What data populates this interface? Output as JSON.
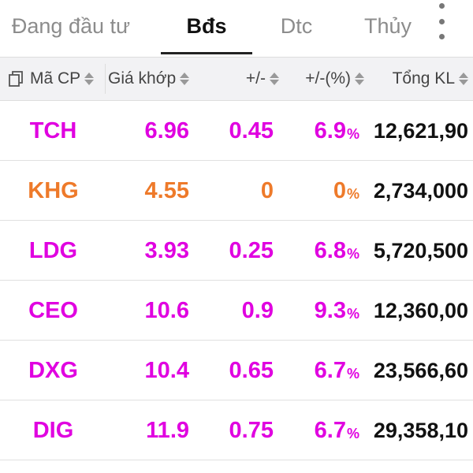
{
  "tabs": [
    {
      "label": "Đang đầu tư",
      "active": false
    },
    {
      "label": "Bđs",
      "active": true
    },
    {
      "label": "Dtc",
      "active": false
    },
    {
      "label": "Thủy",
      "active": false
    }
  ],
  "header": {
    "symbol": "Mã CP",
    "price": "Giá khớp",
    "change": "+/-",
    "change_pct": "+/-(%)",
    "volume": "Tổng KL"
  },
  "colors": {
    "up": "#e000e0",
    "ref": "#ee7a2a"
  },
  "rows": [
    {
      "symbol": "TCH",
      "price": "6.96",
      "change": "0.45",
      "pct": "6.9",
      "pct_sign": "%",
      "volume": "12,621,90",
      "color": "#e000e0"
    },
    {
      "symbol": "KHG",
      "price": "4.55",
      "change": "0",
      "pct": "0",
      "pct_sign": "%",
      "volume": "2,734,000",
      "color": "#ee7a2a"
    },
    {
      "symbol": "LDG",
      "price": "3.93",
      "change": "0.25",
      "pct": "6.8",
      "pct_sign": "%",
      "volume": "5,720,500",
      "color": "#e000e0"
    },
    {
      "symbol": "CEO",
      "price": "10.6",
      "change": "0.9",
      "pct": "9.3",
      "pct_sign": "%",
      "volume": "12,360,00",
      "color": "#e000e0"
    },
    {
      "symbol": "DXG",
      "price": "10.4",
      "change": "0.65",
      "pct": "6.7",
      "pct_sign": "%",
      "volume": "23,566,60",
      "color": "#e000e0"
    },
    {
      "symbol": "DIG",
      "price": "11.9",
      "change": "0.75",
      "pct": "6.7",
      "pct_sign": "%",
      "volume": "29,358,10",
      "color": "#e000e0"
    }
  ]
}
